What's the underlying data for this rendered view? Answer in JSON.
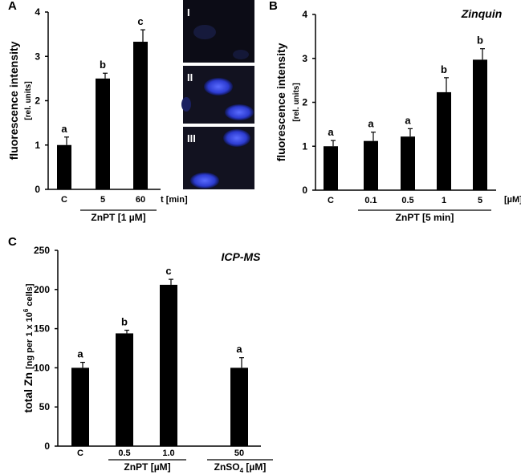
{
  "chart_data": [
    {
      "type": "bar",
      "panel": "A",
      "ylabel": "fluorescence intensity",
      "ylabel_unit": "[rel. units]",
      "categories": [
        "C",
        "5",
        "60"
      ],
      "x_unit": "t [min]",
      "groups": [
        [
          "ZnPT [1 µM]"
        ]
      ],
      "values": [
        1.0,
        2.5,
        3.33
      ],
      "errors": [
        0.18,
        0.12,
        0.27
      ],
      "annotations": [
        "a",
        "b",
        "c"
      ],
      "color": "#000000",
      "ylim": [
        0,
        4
      ],
      "yticks": [
        0,
        1,
        2,
        3,
        4
      ]
    },
    {
      "type": "bar",
      "panel": "B",
      "title": "Zinquin",
      "ylabel": "fluorescence intensity",
      "ylabel_unit": "[rel. units]",
      "categories": [
        "C",
        "0.1",
        "0.5",
        "1",
        "5"
      ],
      "x_unit": "[µM]",
      "groups": [
        [
          "ZnPT [5 min]"
        ]
      ],
      "values": [
        1.0,
        1.12,
        1.22,
        2.23,
        2.97
      ],
      "errors": [
        0.13,
        0.2,
        0.18,
        0.33,
        0.25
      ],
      "annotations": [
        "a",
        "a",
        "a",
        "b",
        "b"
      ],
      "color": "#000000",
      "ylim": [
        0,
        4
      ],
      "yticks": [
        0,
        1,
        2,
        3,
        4
      ]
    },
    {
      "type": "bar",
      "panel": "C",
      "title": "ICP-MS",
      "ylabel": [
        "total Zn",
        "[ng per 1 x 10",
        "6",
        " cells]"
      ],
      "categories": [
        "C",
        "0.5",
        "1.0",
        "50"
      ],
      "groups": [
        [
          "ZnPT [µM]"
        ],
        [
          "ZnSO",
          "4",
          " [µM]"
        ]
      ],
      "values": [
        100,
        144,
        206,
        100
      ],
      "errors": [
        7,
        4,
        7,
        13
      ],
      "annotations": [
        "a",
        "b",
        "c",
        "a"
      ],
      "color": "#000000",
      "ylim": [
        0,
        250
      ],
      "yticks": [
        0,
        50,
        100,
        150,
        200,
        250
      ]
    }
  ],
  "images": {
    "labels": [
      "I",
      "II",
      "III"
    ]
  }
}
